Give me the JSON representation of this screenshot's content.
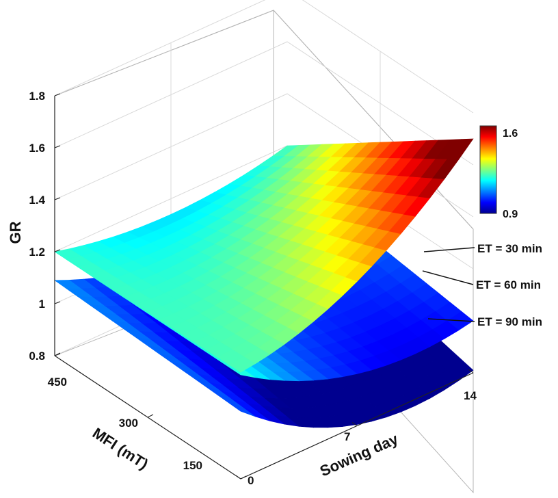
{
  "chart_data": {
    "type": "surface",
    "zlabel": "GR",
    "xlabel": "Sowing day",
    "ylabel": "MFI (mT)",
    "zlim": [
      0.8,
      1.8
    ],
    "z_ticks": [
      "0.8",
      "1",
      "1.2",
      "1.4",
      "1.6",
      "1.8"
    ],
    "x_ticks": [
      "0",
      "7",
      "14"
    ],
    "y_ticks": [
      "150",
      "300",
      "450"
    ],
    "colorbar": {
      "min": 0.9,
      "max": 1.6,
      "min_label": "0.9",
      "max_label": "1.6",
      "colormap": "jet"
    },
    "grid": true,
    "series": [
      {
        "name": "ET = 30 min",
        "corners": {
          "day0_mfi150": 1.21,
          "day0_mfi450": 1.2,
          "day14_mfi150": 1.7,
          "day14_mfi450": 1.2
        }
      },
      {
        "name": "ET = 60 min",
        "corners": {
          "day0_mfi150": 1.2,
          "day0_mfi450": 1.2,
          "day14_mfi150": 1.0,
          "day14_mfi450": 1.1
        }
      },
      {
        "name": "ET = 90 min",
        "corners": {
          "day0_mfi150": 1.06,
          "day0_mfi450": 1.09,
          "day14_mfi150": 0.81,
          "day14_mfi450": 0.99
        }
      }
    ]
  }
}
